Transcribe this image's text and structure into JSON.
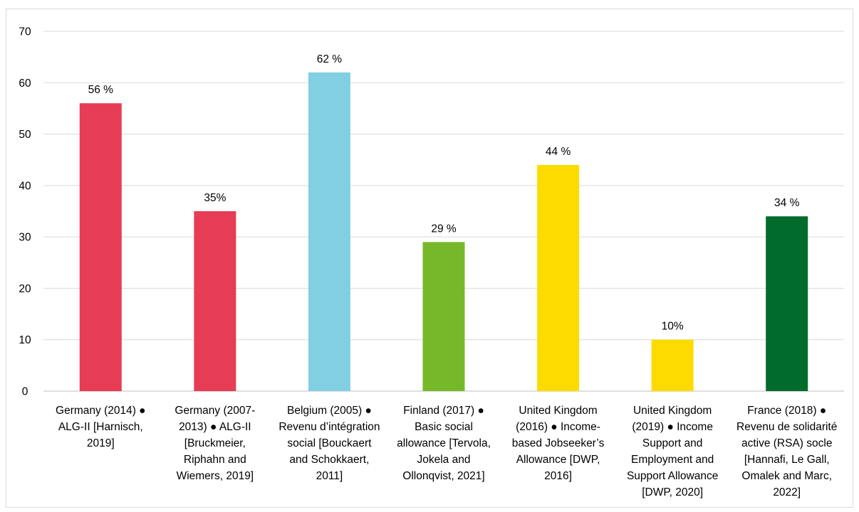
{
  "chart_data": {
    "type": "bar",
    "title": "",
    "xlabel": "",
    "ylabel": "",
    "ylim": [
      0,
      70
    ],
    "yticks": [
      0,
      10,
      20,
      30,
      40,
      50,
      60,
      70
    ],
    "grid": true,
    "legend": "none",
    "categories": [
      [
        "Germany (2014) ●",
        "ALG-II [Harnisch,",
        "2019]"
      ],
      [
        "Germany (2007-",
        "2013) ● ALG-II",
        "[Bruckmeier,",
        "Riphahn and",
        "Wiemers, 2019]"
      ],
      [
        "Belgium (2005) ●",
        "Revenu d’intégration",
        "social [Bouckaert",
        "and Schokkaert,",
        "2011]"
      ],
      [
        "Finland (2017) ●",
        "Basic social",
        "allowance [Tervola,",
        "Jokela and",
        "Ollonqvist, 2021]"
      ],
      [
        "United Kingdom",
        "(2016) ● Income-",
        "based Jobseeker’s",
        "Allowance [DWP,",
        "2016]"
      ],
      [
        "United Kingdom",
        "(2019) ● Income",
        "Support and",
        "Employment and",
        "Support Allowance",
        "[DWP, 2020]"
      ],
      [
        "France (2018) ●",
        "Revenu de solidarité",
        "active (RSA) socle",
        "[Hannafi, Le Gall,",
        "Omalek and Marc,",
        "2022]"
      ]
    ],
    "values": [
      56,
      35,
      62,
      29,
      44,
      10,
      34
    ],
    "data_labels": [
      "56 %",
      "35%",
      "62 %",
      "29 %",
      "44 %",
      "10%",
      "34 %"
    ],
    "colors": [
      "#E63C55",
      "#E63C55",
      "#82CFE2",
      "#77B82A",
      "#FEDB00",
      "#FEDB00",
      "#006B2B"
    ],
    "gridline_color": "#d9d9d9",
    "axis_color": "#bfbfbf"
  }
}
